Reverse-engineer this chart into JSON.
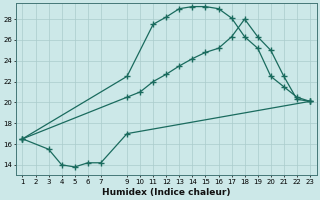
{
  "line_top_x": [
    1,
    9,
    11,
    12,
    13,
    14,
    15,
    16,
    17,
    18,
    19,
    20,
    21,
    22,
    23
  ],
  "line_top_y": [
    16.5,
    22.5,
    27.5,
    28.2,
    29.0,
    29.2,
    29.2,
    29.0,
    28.1,
    26.3,
    25.2,
    22.5,
    21.5,
    20.5,
    20.1
  ],
  "line_mid_x": [
    1,
    9,
    10,
    11,
    12,
    13,
    14,
    15,
    16,
    17,
    18,
    19,
    20,
    21,
    22,
    23
  ],
  "line_mid_y": [
    16.5,
    20.5,
    21.0,
    22.0,
    22.7,
    23.5,
    24.2,
    24.8,
    25.2,
    26.3,
    28.0,
    26.3,
    25.0,
    22.5,
    20.3,
    20.1
  ],
  "line_bot_x": [
    1,
    3,
    4,
    5,
    6,
    7,
    9,
    23
  ],
  "line_bot_y": [
    16.5,
    15.5,
    14.0,
    13.8,
    14.2,
    14.2,
    17.0,
    20.1
  ],
  "bg_color": "#cce8e8",
  "grid_color": "#aacccc",
  "line_color": "#1a6b5e",
  "xlabel": "Humidex (Indice chaleur)",
  "xlim": [
    0.5,
    23.5
  ],
  "ylim": [
    13.0,
    29.5
  ],
  "yticks": [
    14,
    16,
    18,
    20,
    22,
    24,
    26,
    28
  ],
  "xticks": [
    1,
    2,
    3,
    4,
    5,
    6,
    7,
    9,
    10,
    11,
    12,
    13,
    14,
    15,
    16,
    17,
    18,
    19,
    20,
    21,
    22,
    23
  ],
  "xlabel_fontsize": 6.5,
  "tick_fontsize": 5.0
}
